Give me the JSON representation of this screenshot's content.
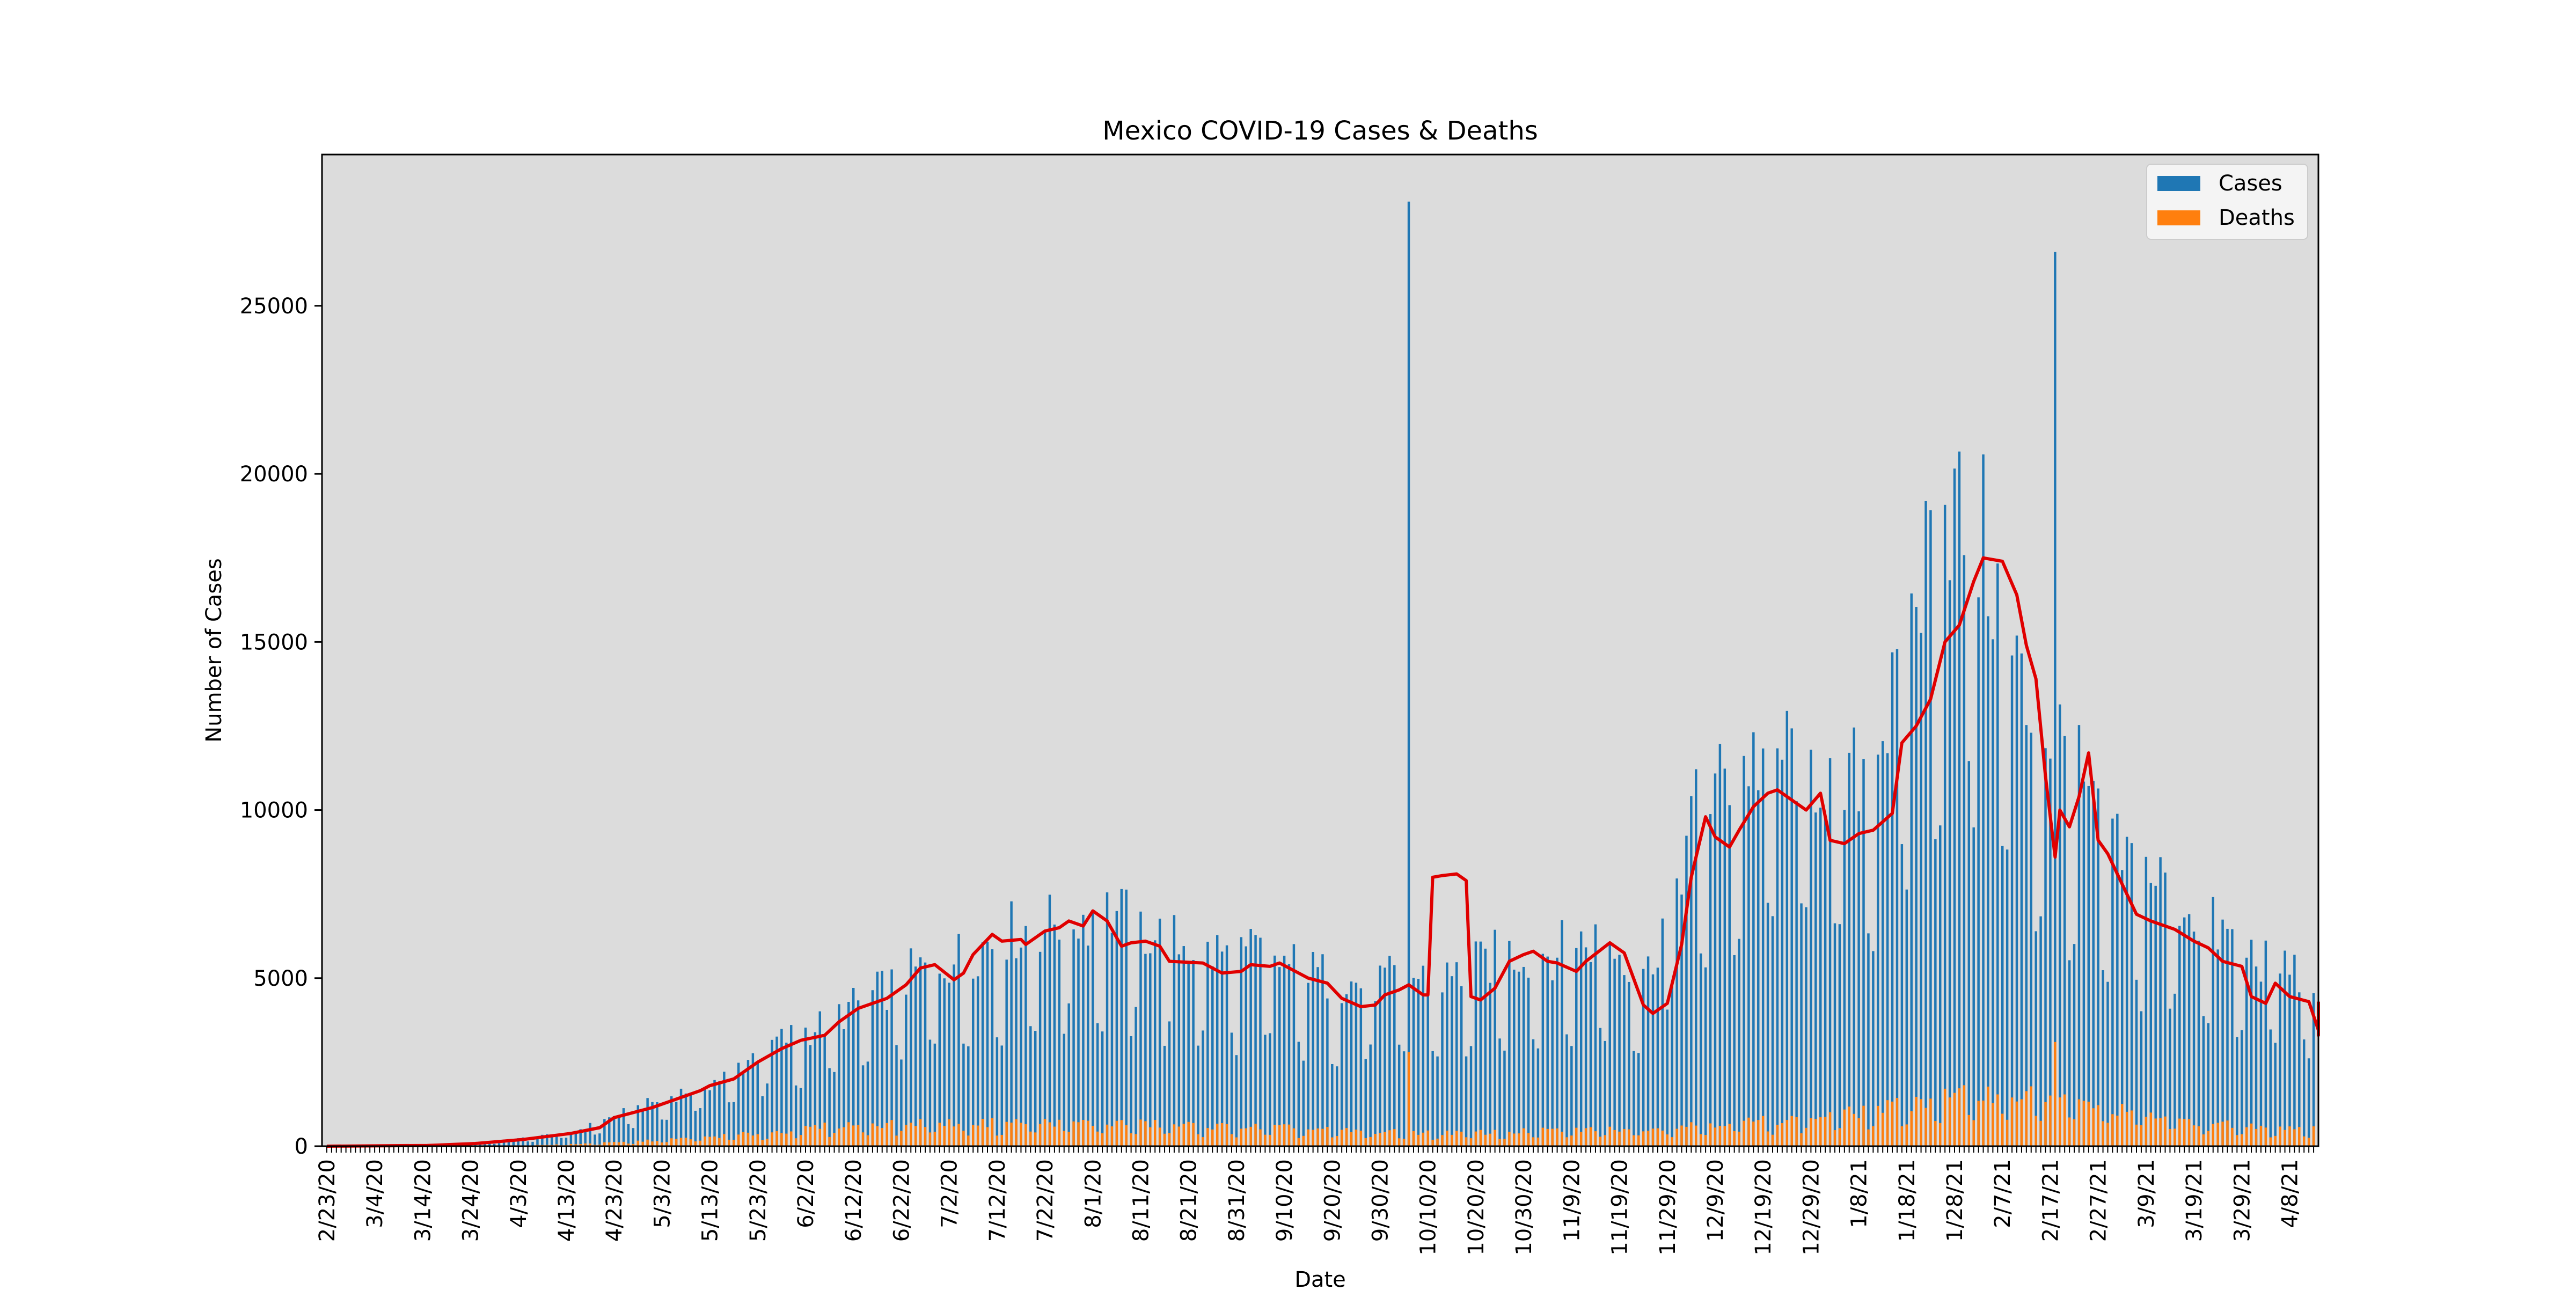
{
  "chart_data": {
    "type": "bar",
    "title": "Mexico COVID-19 Cases & Deaths",
    "xlabel": "Date",
    "ylabel": "Number of Cases",
    "ylim": [
      0,
      29500
    ],
    "yticks": [
      0,
      5000,
      10000,
      15000,
      20000,
      25000
    ],
    "start_date": "2020-02-23",
    "end_date": "2021-04-13",
    "tick_every_days": 10,
    "grid": false,
    "background": "#dcdcdc",
    "legend": {
      "placement": "top-right",
      "entries": [
        {
          "label": "Cases",
          "color": "#1f77b4"
        },
        {
          "label": "Deaths",
          "color": "#ff7f0e"
        }
      ]
    },
    "rolling_average_color": "#e00000",
    "rolling_average_points": [
      [
        "2020-02-23",
        0
      ],
      [
        "2020-03-15",
        20
      ],
      [
        "2020-03-25",
        80
      ],
      [
        "2020-04-04",
        200
      ],
      [
        "2020-04-14",
        380
      ],
      [
        "2020-04-20",
        550
      ],
      [
        "2020-04-23",
        850
      ],
      [
        "2020-05-01",
        1150
      ],
      [
        "2020-05-06",
        1400
      ],
      [
        "2020-05-11",
        1650
      ],
      [
        "2020-05-13",
        1800
      ],
      [
        "2020-05-18",
        2000
      ],
      [
        "2020-05-23",
        2500
      ],
      [
        "2020-05-28",
        2900
      ],
      [
        "2020-06-01",
        3150
      ],
      [
        "2020-06-06",
        3300
      ],
      [
        "2020-06-09",
        3700
      ],
      [
        "2020-06-13",
        4100
      ],
      [
        "2020-06-19",
        4400
      ],
      [
        "2020-06-23",
        4800
      ],
      [
        "2020-06-26",
        5300
      ],
      [
        "2020-06-29",
        5400
      ],
      [
        "2020-07-03",
        4950
      ],
      [
        "2020-07-05",
        5150
      ],
      [
        "2020-07-07",
        5700
      ],
      [
        "2020-07-11",
        6300
      ],
      [
        "2020-07-13",
        6100
      ],
      [
        "2020-07-17",
        6150
      ],
      [
        "2020-07-18",
        6000
      ],
      [
        "2020-07-22",
        6400
      ],
      [
        "2020-07-25",
        6500
      ],
      [
        "2020-07-27",
        6700
      ],
      [
        "2020-07-30",
        6550
      ],
      [
        "2020-08-01",
        7000
      ],
      [
        "2020-08-04",
        6700
      ],
      [
        "2020-08-07",
        5950
      ],
      [
        "2020-08-09",
        6050
      ],
      [
        "2020-08-12",
        6100
      ],
      [
        "2020-08-15",
        5950
      ],
      [
        "2020-08-17",
        5500
      ],
      [
        "2020-08-24",
        5450
      ],
      [
        "2020-08-28",
        5150
      ],
      [
        "2020-09-01",
        5200
      ],
      [
        "2020-09-03",
        5400
      ],
      [
        "2020-09-07",
        5350
      ],
      [
        "2020-09-09",
        5450
      ],
      [
        "2020-09-15",
        5000
      ],
      [
        "2020-09-19",
        4850
      ],
      [
        "2020-09-22",
        4400
      ],
      [
        "2020-09-26",
        4150
      ],
      [
        "2020-09-29",
        4200
      ],
      [
        "2020-10-01",
        4500
      ],
      [
        "2020-10-04",
        4650
      ],
      [
        "2020-10-06",
        4800
      ],
      [
        "2020-10-09",
        4500
      ],
      [
        "2020-10-10",
        4500
      ],
      [
        "2020-10-11",
        8000
      ],
      [
        "2020-10-13",
        8050
      ],
      [
        "2020-10-16",
        8100
      ],
      [
        "2020-10-18",
        7900
      ],
      [
        "2020-10-19",
        4450
      ],
      [
        "2020-10-21",
        4350
      ],
      [
        "2020-10-24",
        4700
      ],
      [
        "2020-10-27",
        5500
      ],
      [
        "2020-10-30",
        5700
      ],
      [
        "2020-11-01",
        5800
      ],
      [
        "2020-11-04",
        5500
      ],
      [
        "2020-11-06",
        5450
      ],
      [
        "2020-11-10",
        5200
      ],
      [
        "2020-11-12",
        5500
      ],
      [
        "2020-11-17",
        6050
      ],
      [
        "2020-11-20",
        5750
      ],
      [
        "2020-11-24",
        4200
      ],
      [
        "2020-11-26",
        3950
      ],
      [
        "2020-11-29",
        4250
      ],
      [
        "2020-12-02",
        6000
      ],
      [
        "2020-12-04",
        8000
      ],
      [
        "2020-12-07",
        9800
      ],
      [
        "2020-12-09",
        9200
      ],
      [
        "2020-12-12",
        8900
      ],
      [
        "2020-12-14",
        9400
      ],
      [
        "2020-12-17",
        10100
      ],
      [
        "2020-12-20",
        10500
      ],
      [
        "2020-12-22",
        10600
      ],
      [
        "2020-12-25",
        10300
      ],
      [
        "2020-12-28",
        10000
      ],
      [
        "2020-12-31",
        10500
      ],
      [
        "2021-01-02",
        9100
      ],
      [
        "2021-01-05",
        9000
      ],
      [
        "2021-01-08",
        9300
      ],
      [
        "2021-01-11",
        9400
      ],
      [
        "2021-01-15",
        9900
      ],
      [
        "2021-01-17",
        12000
      ],
      [
        "2021-01-20",
        12500
      ],
      [
        "2021-01-23",
        13300
      ],
      [
        "2021-01-26",
        15000
      ],
      [
        "2021-01-29",
        15500
      ],
      [
        "2021-02-01",
        16800
      ],
      [
        "2021-02-03",
        17500
      ],
      [
        "2021-02-07",
        17400
      ],
      [
        "2021-02-10",
        16400
      ],
      [
        "2021-02-12",
        14900
      ],
      [
        "2021-02-14",
        13900
      ],
      [
        "2021-02-16",
        11000
      ],
      [
        "2021-02-18",
        8600
      ],
      [
        "2021-02-19",
        10000
      ],
      [
        "2021-02-21",
        9500
      ],
      [
        "2021-02-23",
        10400
      ],
      [
        "2021-02-25",
        11700
      ],
      [
        "2021-02-27",
        9100
      ],
      [
        "2021-03-01",
        8700
      ],
      [
        "2021-03-04",
        7800
      ],
      [
        "2021-03-07",
        6900
      ],
      [
        "2021-03-10",
        6700
      ],
      [
        "2021-03-15",
        6450
      ],
      [
        "2021-03-19",
        6100
      ],
      [
        "2021-03-22",
        5900
      ],
      [
        "2021-03-25",
        5500
      ],
      [
        "2021-03-29",
        5350
      ],
      [
        "2021-03-31",
        4450
      ],
      [
        "2021-04-03",
        4250
      ],
      [
        "2021-04-05",
        4850
      ],
      [
        "2021-04-08",
        4450
      ],
      [
        "2021-04-12",
        4300
      ],
      [
        "2021-04-15",
        3450
      ],
      [
        "2021-04-18",
        3350
      ],
      [
        "2021-04-20",
        3300
      ],
      [
        "2021-04-22",
        4200
      ],
      [
        "2021-04-26",
        4300
      ]
    ],
    "case_anchors": [
      [
        "2020-02-23",
        0
      ],
      [
        "2020-03-10",
        10
      ],
      [
        "2020-03-25",
        80
      ],
      [
        "2020-04-05",
        250
      ],
      [
        "2020-04-15",
        450
      ],
      [
        "2020-04-25",
        1000
      ],
      [
        "2020-05-05",
        1500
      ],
      [
        "2020-05-15",
        2000
      ],
      [
        "2020-05-25",
        3000
      ],
      [
        "2020-06-05",
        3600
      ],
      [
        "2020-06-15",
        4400
      ],
      [
        "2020-06-25",
        5200
      ],
      [
        "2020-07-05",
        5700
      ],
      [
        "2020-07-15",
        6400
      ],
      [
        "2020-07-25",
        6700
      ],
      [
        "2020-08-05",
        7000
      ],
      [
        "2020-08-15",
        6200
      ],
      [
        "2020-08-25",
        5800
      ],
      [
        "2020-09-05",
        5700
      ],
      [
        "2020-09-15",
        5200
      ],
      [
        "2020-09-25",
        4800
      ],
      [
        "2020-10-05",
        5000
      ],
      [
        "2020-10-15",
        5000
      ],
      [
        "2020-10-25",
        5700
      ],
      [
        "2020-11-05",
        5800
      ],
      [
        "2020-11-15",
        6200
      ],
      [
        "2020-11-25",
        5200
      ],
      [
        "2020-12-05",
        10000
      ],
      [
        "2020-12-15",
        11500
      ],
      [
        "2020-12-25",
        11800
      ],
      [
        "2021-01-05",
        10500
      ],
      [
        "2021-01-15",
        13000
      ],
      [
        "2021-01-25",
        19500
      ],
      [
        "2021-02-03",
        18000
      ],
      [
        "2021-02-12",
        13000
      ],
      [
        "2021-02-20",
        12000
      ],
      [
        "2021-03-01",
        8800
      ],
      [
        "2021-03-10",
        8200
      ],
      [
        "2021-03-20",
        6800
      ],
      [
        "2021-03-30",
        5800
      ],
      [
        "2021-04-10",
        5200
      ],
      [
        "2021-04-20",
        4800
      ],
      [
        "2021-04-26",
        5000
      ]
    ],
    "death_anchors": [
      [
        "2020-02-23",
        0
      ],
      [
        "2020-03-25",
        5
      ],
      [
        "2020-04-10",
        40
      ],
      [
        "2020-04-25",
        120
      ],
      [
        "2020-05-10",
        250
      ],
      [
        "2020-05-25",
        400
      ],
      [
        "2020-06-10",
        650
      ],
      [
        "2020-06-25",
        700
      ],
      [
        "2020-07-10",
        700
      ],
      [
        "2020-07-25",
        720
      ],
      [
        "2020-08-10",
        680
      ],
      [
        "2020-08-25",
        600
      ],
      [
        "2020-09-10",
        550
      ],
      [
        "2020-09-25",
        450
      ],
      [
        "2020-10-10",
        400
      ],
      [
        "2020-10-25",
        420
      ],
      [
        "2020-11-10",
        500
      ],
      [
        "2020-11-25",
        550
      ],
      [
        "2020-12-10",
        700
      ],
      [
        "2020-12-25",
        800
      ],
      [
        "2021-01-10",
        1050
      ],
      [
        "2021-01-25",
        1450
      ],
      [
        "2021-02-05",
        1600
      ],
      [
        "2021-02-18",
        1450
      ],
      [
        "2021-03-01",
        1150
      ],
      [
        "2021-03-15",
        800
      ],
      [
        "2021-03-30",
        600
      ],
      [
        "2021-04-15",
        550
      ],
      [
        "2021-04-26",
        500
      ]
    ],
    "spikes": [
      {
        "date": "2020-10-06",
        "cases": 28100,
        "deaths": 2800
      },
      {
        "date": "2021-02-18",
        "cases": 26600,
        "deaths": 3100
      }
    ]
  }
}
